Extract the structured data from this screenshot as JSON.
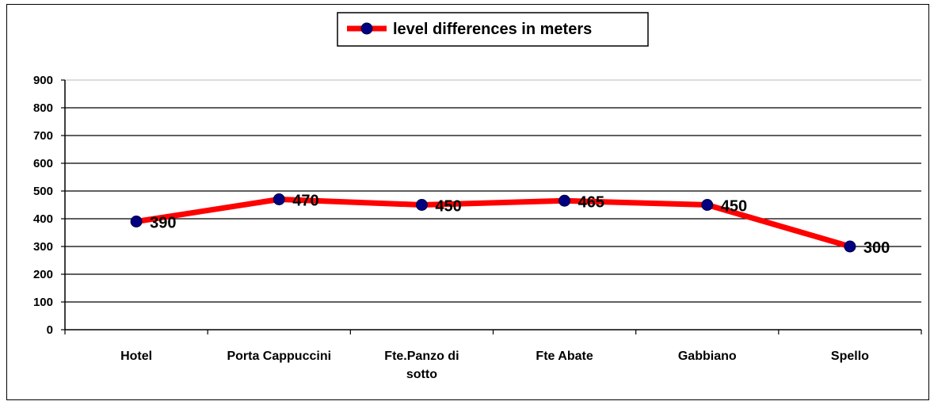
{
  "chart_data": {
    "type": "line",
    "categories": [
      "Hotel",
      "Porta Cappuccini",
      "Fte.Panzo di sotto",
      "Fte Abate",
      "Gabbiano",
      "Spello"
    ],
    "category_lines": [
      [
        "Hotel"
      ],
      [
        "Porta Cappuccini"
      ],
      [
        "Fte.Panzo di",
        "sotto"
      ],
      [
        "Fte Abate"
      ],
      [
        "Gabbiano"
      ],
      [
        "Spello"
      ]
    ],
    "series": [
      {
        "name": "level differences in meters",
        "values": [
          390,
          470,
          450,
          465,
          450,
          300
        ],
        "line_color": "#ff0000",
        "marker_color": "#000080"
      }
    ],
    "data_labels": [
      "390",
      "470",
      "450",
      "465",
      "450",
      "300"
    ],
    "ylim": [
      0,
      900
    ],
    "yticks": [
      "0",
      "100",
      "200",
      "300",
      "400",
      "500",
      "600",
      "700",
      "800",
      "900"
    ],
    "grid": true,
    "legend_position": "top-center"
  }
}
